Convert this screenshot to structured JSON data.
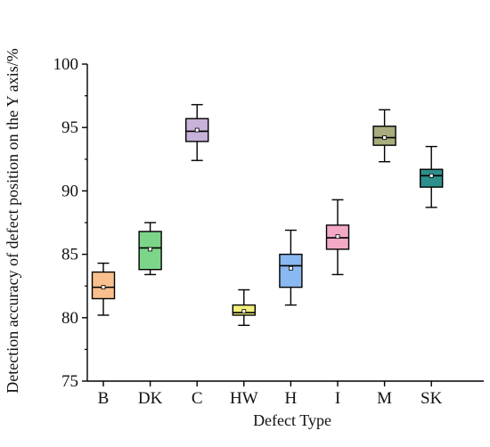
{
  "chart_data": {
    "type": "box",
    "xlabel": "Defect Type",
    "ylabel": "Detection accuracy of defect position on the Y axis/%",
    "ylim": [
      75,
      100
    ],
    "yticks": [
      75,
      80,
      85,
      90,
      95,
      100
    ],
    "categories": [
      "B",
      "DK",
      "C",
      "HW",
      "H",
      "I",
      "M",
      "SK"
    ],
    "colors": [
      "#f9c08e",
      "#7dd58a",
      "#c8b2d8",
      "#f2f07a",
      "#8ab8f0",
      "#f2a9c6",
      "#a9ad7e",
      "#2e8f8c"
    ],
    "boxes": [
      {
        "whisker_low": 80.2,
        "q1": 81.5,
        "median": 82.4,
        "q3": 83.6,
        "whisker_high": 84.3,
        "mean": 82.4
      },
      {
        "whisker_low": 83.4,
        "q1": 83.8,
        "median": 85.5,
        "q3": 86.8,
        "whisker_high": 87.5,
        "mean": 85.4
      },
      {
        "whisker_low": 92.4,
        "q1": 93.9,
        "median": 94.7,
        "q3": 95.7,
        "whisker_high": 96.8,
        "mean": 94.8
      },
      {
        "whisker_low": 79.4,
        "q1": 80.2,
        "median": 80.4,
        "q3": 81.0,
        "whisker_high": 82.2,
        "mean": 80.5
      },
      {
        "whisker_low": 81.0,
        "q1": 82.4,
        "median": 84.1,
        "q3": 85.0,
        "whisker_high": 86.9,
        "mean": 83.9
      },
      {
        "whisker_low": 83.4,
        "q1": 85.4,
        "median": 86.3,
        "q3": 87.3,
        "whisker_high": 89.3,
        "mean": 86.4
      },
      {
        "whisker_low": 92.3,
        "q1": 93.6,
        "median": 94.2,
        "q3": 95.1,
        "whisker_high": 96.4,
        "mean": 94.2
      },
      {
        "whisker_low": 88.7,
        "q1": 90.3,
        "median": 91.2,
        "q3": 91.7,
        "whisker_high": 93.5,
        "mean": 91.2
      }
    ],
    "grid": false,
    "legend": "none"
  }
}
